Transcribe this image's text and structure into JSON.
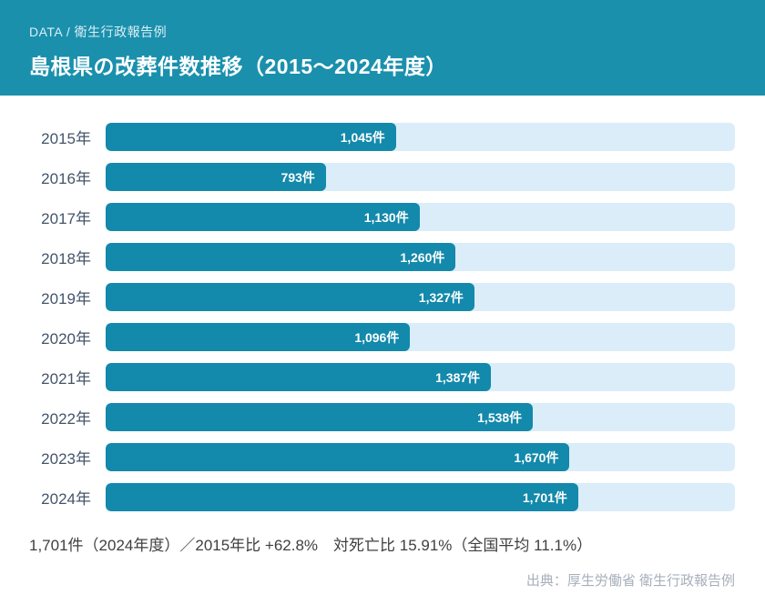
{
  "header": {
    "eyebrow": "DATA / 衛生行政報告例",
    "title": "島根県の改葬件数推移（2015～2024年度）"
  },
  "chart_data": {
    "type": "bar",
    "orientation": "horizontal",
    "title": "島根県の改葬件数推移（2015～2024年度）",
    "categories": [
      "2015年",
      "2016年",
      "2017年",
      "2018年",
      "2019年",
      "2020年",
      "2021年",
      "2022年",
      "2023年",
      "2024年"
    ],
    "values": [
      1045,
      793,
      1130,
      1260,
      1327,
      1096,
      1387,
      1538,
      1670,
      1701
    ],
    "value_labels": [
      "1,045件",
      "793件",
      "1,130件",
      "1,260件",
      "1,327件",
      "1,096件",
      "1,387件",
      "1,538件",
      "1,670件",
      "1,701件"
    ],
    "unit": "件",
    "axis_max": 2265,
    "grid": false,
    "legend": false,
    "bar_color": "#1389ab",
    "track_color": "#daedf9"
  },
  "summary": "1,701件（2024年度）／2015年比 +62.8%　対死亡比 15.91%（全国平均 11.1%）",
  "source": "出典：厚生労働省 衛生行政報告例",
  "colors": {
    "header_background": "#1a90ad",
    "bar": "#1389ab",
    "bar_track": "#daedf9",
    "year_label": "#44546a",
    "summary_text": "#3f3f3f",
    "source_text": "#a7afbc"
  }
}
